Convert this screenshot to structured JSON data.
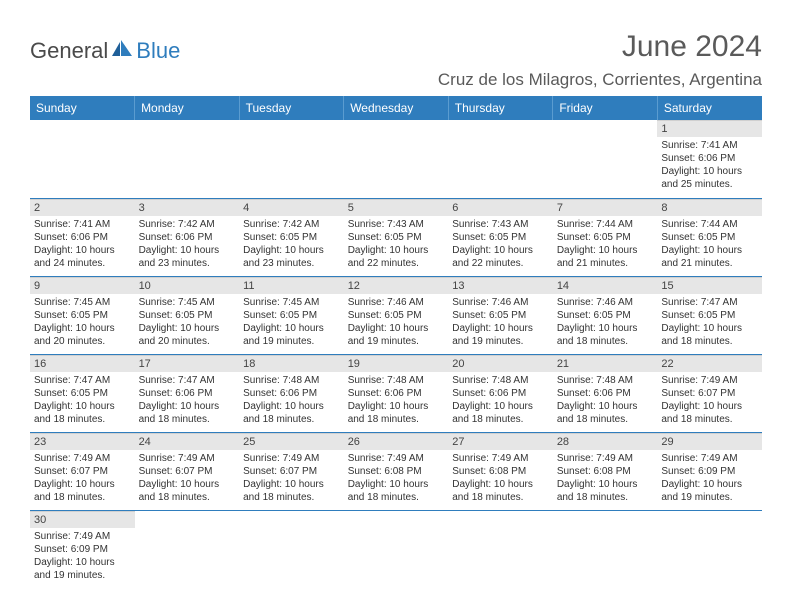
{
  "brand": {
    "text1": "General",
    "text2": "Blue"
  },
  "header": {
    "month_title": "June 2024",
    "location": "Cruz de los Milagros, Corrientes, Argentina"
  },
  "colors": {
    "header_bg": "#2f7dbd",
    "header_text": "#ffffff",
    "row_divider": "#2f7dbd",
    "daynum_bg": "#e6e6e6",
    "body_text": "#333333",
    "title_text": "#5a5a5a"
  },
  "typography": {
    "month_title_pt": 30,
    "location_pt": 17,
    "weekday_pt": 12,
    "daynum_pt": 11,
    "body_pt": 10
  },
  "weekdays": [
    "Sunday",
    "Monday",
    "Tuesday",
    "Wednesday",
    "Thursday",
    "Friday",
    "Saturday"
  ],
  "weeks": [
    [
      null,
      null,
      null,
      null,
      null,
      null,
      {
        "n": "1",
        "sunrise": "Sunrise: 7:41 AM",
        "sunset": "Sunset: 6:06 PM",
        "day1": "Daylight: 10 hours",
        "day2": "and 25 minutes."
      }
    ],
    [
      {
        "n": "2",
        "sunrise": "Sunrise: 7:41 AM",
        "sunset": "Sunset: 6:06 PM",
        "day1": "Daylight: 10 hours",
        "day2": "and 24 minutes."
      },
      {
        "n": "3",
        "sunrise": "Sunrise: 7:42 AM",
        "sunset": "Sunset: 6:06 PM",
        "day1": "Daylight: 10 hours",
        "day2": "and 23 minutes."
      },
      {
        "n": "4",
        "sunrise": "Sunrise: 7:42 AM",
        "sunset": "Sunset: 6:05 PM",
        "day1": "Daylight: 10 hours",
        "day2": "and 23 minutes."
      },
      {
        "n": "5",
        "sunrise": "Sunrise: 7:43 AM",
        "sunset": "Sunset: 6:05 PM",
        "day1": "Daylight: 10 hours",
        "day2": "and 22 minutes."
      },
      {
        "n": "6",
        "sunrise": "Sunrise: 7:43 AM",
        "sunset": "Sunset: 6:05 PM",
        "day1": "Daylight: 10 hours",
        "day2": "and 22 minutes."
      },
      {
        "n": "7",
        "sunrise": "Sunrise: 7:44 AM",
        "sunset": "Sunset: 6:05 PM",
        "day1": "Daylight: 10 hours",
        "day2": "and 21 minutes."
      },
      {
        "n": "8",
        "sunrise": "Sunrise: 7:44 AM",
        "sunset": "Sunset: 6:05 PM",
        "day1": "Daylight: 10 hours",
        "day2": "and 21 minutes."
      }
    ],
    [
      {
        "n": "9",
        "sunrise": "Sunrise: 7:45 AM",
        "sunset": "Sunset: 6:05 PM",
        "day1": "Daylight: 10 hours",
        "day2": "and 20 minutes."
      },
      {
        "n": "10",
        "sunrise": "Sunrise: 7:45 AM",
        "sunset": "Sunset: 6:05 PM",
        "day1": "Daylight: 10 hours",
        "day2": "and 20 minutes."
      },
      {
        "n": "11",
        "sunrise": "Sunrise: 7:45 AM",
        "sunset": "Sunset: 6:05 PM",
        "day1": "Daylight: 10 hours",
        "day2": "and 19 minutes."
      },
      {
        "n": "12",
        "sunrise": "Sunrise: 7:46 AM",
        "sunset": "Sunset: 6:05 PM",
        "day1": "Daylight: 10 hours",
        "day2": "and 19 minutes."
      },
      {
        "n": "13",
        "sunrise": "Sunrise: 7:46 AM",
        "sunset": "Sunset: 6:05 PM",
        "day1": "Daylight: 10 hours",
        "day2": "and 19 minutes."
      },
      {
        "n": "14",
        "sunrise": "Sunrise: 7:46 AM",
        "sunset": "Sunset: 6:05 PM",
        "day1": "Daylight: 10 hours",
        "day2": "and 18 minutes."
      },
      {
        "n": "15",
        "sunrise": "Sunrise: 7:47 AM",
        "sunset": "Sunset: 6:05 PM",
        "day1": "Daylight: 10 hours",
        "day2": "and 18 minutes."
      }
    ],
    [
      {
        "n": "16",
        "sunrise": "Sunrise: 7:47 AM",
        "sunset": "Sunset: 6:05 PM",
        "day1": "Daylight: 10 hours",
        "day2": "and 18 minutes."
      },
      {
        "n": "17",
        "sunrise": "Sunrise: 7:47 AM",
        "sunset": "Sunset: 6:06 PM",
        "day1": "Daylight: 10 hours",
        "day2": "and 18 minutes."
      },
      {
        "n": "18",
        "sunrise": "Sunrise: 7:48 AM",
        "sunset": "Sunset: 6:06 PM",
        "day1": "Daylight: 10 hours",
        "day2": "and 18 minutes."
      },
      {
        "n": "19",
        "sunrise": "Sunrise: 7:48 AM",
        "sunset": "Sunset: 6:06 PM",
        "day1": "Daylight: 10 hours",
        "day2": "and 18 minutes."
      },
      {
        "n": "20",
        "sunrise": "Sunrise: 7:48 AM",
        "sunset": "Sunset: 6:06 PM",
        "day1": "Daylight: 10 hours",
        "day2": "and 18 minutes."
      },
      {
        "n": "21",
        "sunrise": "Sunrise: 7:48 AM",
        "sunset": "Sunset: 6:06 PM",
        "day1": "Daylight: 10 hours",
        "day2": "and 18 minutes."
      },
      {
        "n": "22",
        "sunrise": "Sunrise: 7:49 AM",
        "sunset": "Sunset: 6:07 PM",
        "day1": "Daylight: 10 hours",
        "day2": "and 18 minutes."
      }
    ],
    [
      {
        "n": "23",
        "sunrise": "Sunrise: 7:49 AM",
        "sunset": "Sunset: 6:07 PM",
        "day1": "Daylight: 10 hours",
        "day2": "and 18 minutes."
      },
      {
        "n": "24",
        "sunrise": "Sunrise: 7:49 AM",
        "sunset": "Sunset: 6:07 PM",
        "day1": "Daylight: 10 hours",
        "day2": "and 18 minutes."
      },
      {
        "n": "25",
        "sunrise": "Sunrise: 7:49 AM",
        "sunset": "Sunset: 6:07 PM",
        "day1": "Daylight: 10 hours",
        "day2": "and 18 minutes."
      },
      {
        "n": "26",
        "sunrise": "Sunrise: 7:49 AM",
        "sunset": "Sunset: 6:08 PM",
        "day1": "Daylight: 10 hours",
        "day2": "and 18 minutes."
      },
      {
        "n": "27",
        "sunrise": "Sunrise: 7:49 AM",
        "sunset": "Sunset: 6:08 PM",
        "day1": "Daylight: 10 hours",
        "day2": "and 18 minutes."
      },
      {
        "n": "28",
        "sunrise": "Sunrise: 7:49 AM",
        "sunset": "Sunset: 6:08 PM",
        "day1": "Daylight: 10 hours",
        "day2": "and 18 minutes."
      },
      {
        "n": "29",
        "sunrise": "Sunrise: 7:49 AM",
        "sunset": "Sunset: 6:09 PM",
        "day1": "Daylight: 10 hours",
        "day2": "and 19 minutes."
      }
    ],
    [
      {
        "n": "30",
        "sunrise": "Sunrise: 7:49 AM",
        "sunset": "Sunset: 6:09 PM",
        "day1": "Daylight: 10 hours",
        "day2": "and 19 minutes."
      },
      null,
      null,
      null,
      null,
      null,
      null
    ]
  ]
}
